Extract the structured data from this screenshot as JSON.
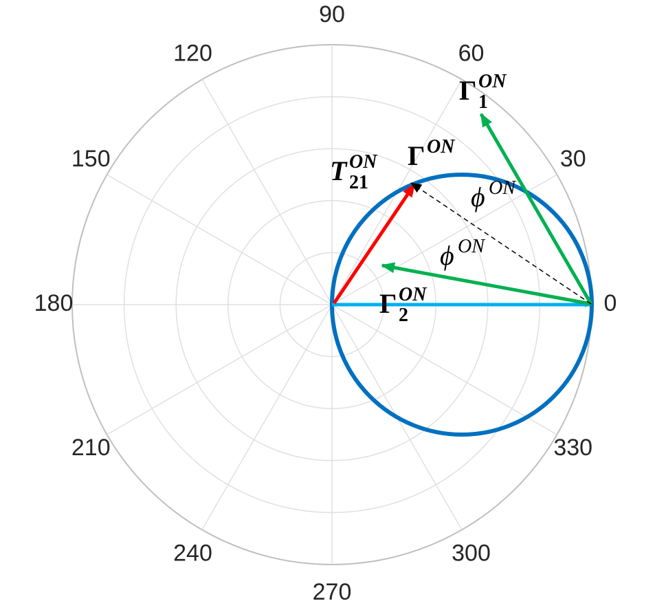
{
  "angle_labels": [
    "0",
    "30",
    "60",
    "90",
    "120",
    "150",
    "180",
    "210",
    "240",
    "270",
    "300",
    "330"
  ],
  "vector_labels": [
    {
      "base": "Γ",
      "sub": "1",
      "sup": "ON"
    },
    {
      "base": "Γ",
      "sup": "ON"
    },
    {
      "base": "T",
      "sub": "21",
      "sup": "ON"
    },
    {
      "base": "ϕ",
      "sup": "ON"
    },
    {
      "base": "ϕ",
      "sup": "ON"
    },
    {
      "base": "Γ",
      "sub": "2",
      "sup": "ON"
    }
  ]
}
